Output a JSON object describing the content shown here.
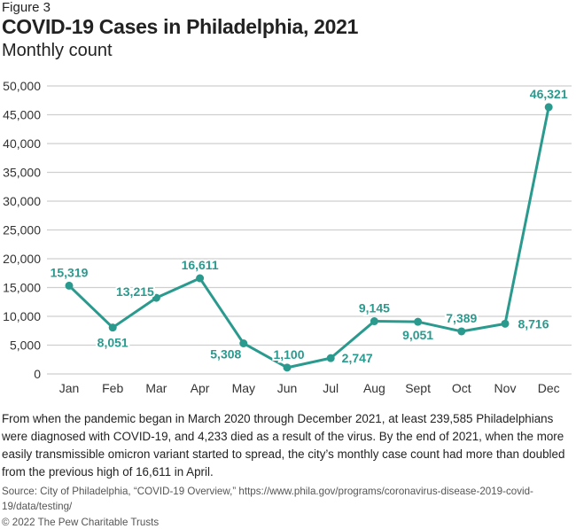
{
  "figure_label": "Figure 3",
  "chart_data": {
    "type": "line",
    "title": "COVID-19 Cases in Philadelphia, 2021",
    "subtitle": "Monthly count",
    "categories": [
      "Jan",
      "Feb",
      "Mar",
      "Apr",
      "May",
      "Jun",
      "Jul",
      "Aug",
      "Sept",
      "Oct",
      "Nov",
      "Dec"
    ],
    "values": [
      15319,
      8051,
      13215,
      16611,
      5308,
      1100,
      2747,
      9145,
      9051,
      7389,
      8716,
      46321
    ],
    "data_labels": [
      "15,319",
      "8,051",
      "13,215",
      "16,611",
      "5,308",
      "1,100",
      "2,747",
      "9,145",
      "9,051",
      "7,389",
      "8,716",
      "46,321"
    ],
    "yticks": [
      0,
      5000,
      10000,
      15000,
      20000,
      25000,
      30000,
      35000,
      40000,
      45000,
      50000
    ],
    "ytick_labels": [
      "0",
      "5,000",
      "10,000",
      "15,000",
      "20,000",
      "25,000",
      "30,000",
      "35,000",
      "40,000",
      "45,000",
      "50,000"
    ],
    "ylim": [
      0,
      50000
    ],
    "xlabel": "",
    "ylabel": "",
    "grid": "horizontal",
    "color": "#2a9a8e"
  },
  "note": "From when the pandemic began in March 2020 through December 2021, at least 239,585 Philadelphians were diagnosed with COVID-19, and 4,233 died as a result of the virus. By the end of 2021, when the more easily transmissible omicron variant started to spread, the city’s monthly case count had more than doubled from the previous high of 16,611 in April.",
  "source": "Source: City of Philadelphia, “COVID-19 Overview,” https://www.phila.gov/programs/coronavirus-disease-2019-covid-19/data/testing/",
  "copyright": "© 2022 The Pew Charitable Trusts"
}
